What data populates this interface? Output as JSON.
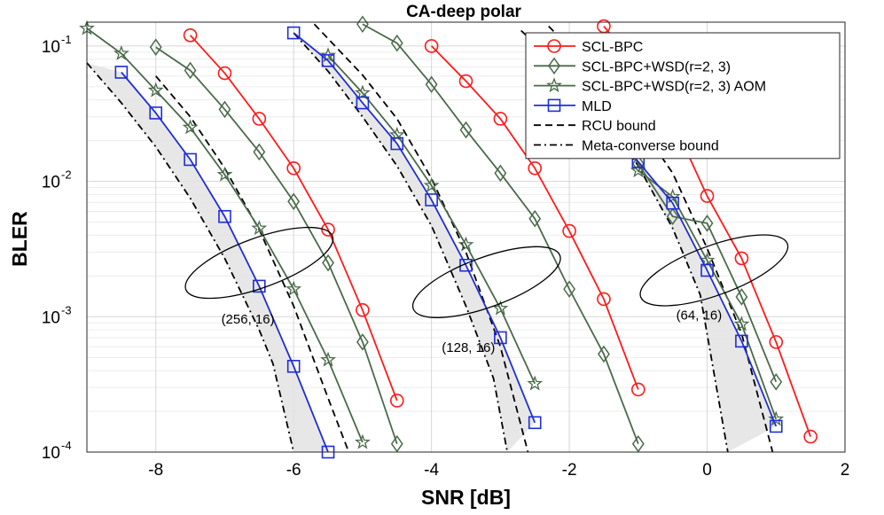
{
  "chart_data": {
    "type": "line",
    "title": "CA-deep polar",
    "xlabel": "SNR [dB]",
    "ylabel": "BLER",
    "xlim": [
      -9,
      2
    ],
    "ylim": [
      0.0001,
      0.15
    ],
    "yscale": "log",
    "grid": true,
    "legend_position": "top-right",
    "x_ticks": [
      -8,
      -6,
      -4,
      -2,
      0,
      2
    ],
    "y_ticks": [
      {
        "value": 0.1,
        "base": "10",
        "exp": "-1"
      },
      {
        "value": 0.01,
        "base": "10",
        "exp": "-2"
      },
      {
        "value": 0.001,
        "base": "10",
        "exp": "-3"
      },
      {
        "value": 0.0001,
        "base": "10",
        "exp": "-4"
      }
    ],
    "series": [
      {
        "name": "SCL-BPC",
        "color": "#ff1a1a",
        "marker": "circle",
        "dash": "solid",
        "groups": [
          {
            "x": [
              -7.5,
              -7.0,
              -6.5,
              -6.0,
              -5.5,
              -5.0,
              -4.5
            ],
            "y": [
              0.12,
              0.063,
              0.029,
              0.0125,
              0.0044,
              0.00112,
              0.00024
            ]
          },
          {
            "x": [
              -4.0,
              -3.5,
              -3.0,
              -2.5,
              -2.0,
              -1.5,
              -1.0
            ],
            "y": [
              0.1,
              0.055,
              0.029,
              0.0125,
              0.0043,
              0.00135,
              0.00029
            ]
          },
          {
            "x": [
              -1.5,
              -1.0,
              -0.5,
              0.0,
              0.5,
              1.0,
              1.5
            ],
            "y": [
              0.14,
              0.07,
              0.028,
              0.0078,
              0.0027,
              0.00065,
              0.00013
            ]
          }
        ]
      },
      {
        "name": "SCL-BPC+WSD(r=2, 3)",
        "color": "#4a6a4a",
        "marker": "diamond",
        "dash": "solid",
        "groups": [
          {
            "x": [
              -8.0,
              -7.5,
              -7.0,
              -6.5,
              -6.0,
              -5.5,
              -5.0,
              -4.5
            ],
            "y": [
              0.098,
              0.066,
              0.034,
              0.0165,
              0.0071,
              0.0025,
              0.00065,
              0.000115
            ]
          },
          {
            "x": [
              -5.0,
              -4.5,
              -4.0,
              -3.5,
              -3.0,
              -2.5,
              -2.0,
              -1.5,
              -1.0
            ],
            "y": [
              0.145,
              0.105,
              0.052,
              0.024,
              0.0115,
              0.0053,
              0.0016,
              0.00053,
              0.000115
            ]
          },
          {
            "x": [
              -1.5,
              -1.0,
              -0.5,
              0.0,
              0.5,
              1.0
            ],
            "y": [
              0.033,
              0.0135,
              0.0055,
              0.0049,
              0.0014,
              0.00033
            ]
          }
        ]
      },
      {
        "name": "SCL-BPC+WSD(r=2, 3) AOM",
        "color": "#4a6a4a",
        "marker": "star",
        "dash": "solid",
        "groups": [
          {
            "x": [
              -9.0,
              -8.5,
              -8.0,
              -7.5,
              -7.0,
              -6.5,
              -6.0,
              -5.5,
              -5.0
            ],
            "y": [
              0.135,
              0.088,
              0.047,
              0.025,
              0.0112,
              0.0045,
              0.0016,
              0.00048,
              0.000118
            ]
          },
          {
            "x": [
              -5.5,
              -5.0,
              -4.5,
              -4.0,
              -3.5,
              -3.0,
              -2.5
            ],
            "y": [
              0.085,
              0.045,
              0.022,
              0.0093,
              0.0034,
              0.00115,
              0.00032
            ]
          },
          {
            "x": [
              -1.0,
              -0.5,
              0.0,
              0.5,
              1.0
            ],
            "y": [
              0.012,
              0.0077,
              0.0026,
              0.00088,
              0.000175
            ]
          }
        ]
      },
      {
        "name": "MLD",
        "color": "#1f2ed8",
        "marker": "square",
        "dash": "solid",
        "groups": [
          {
            "x": [
              -8.5,
              -8.0,
              -7.5,
              -7.0,
              -6.5,
              -6.0,
              -5.5
            ],
            "y": [
              0.064,
              0.032,
              0.0145,
              0.0055,
              0.00168,
              0.00043,
              0.0001
            ]
          },
          {
            "x": [
              -6.0,
              -5.5,
              -5.0,
              -4.5,
              -4.0,
              -3.5,
              -3.0,
              -2.5
            ],
            "y": [
              0.125,
              0.078,
              0.038,
              0.019,
              0.0073,
              0.0024,
              0.0007,
              0.000165
            ]
          },
          {
            "x": [
              -2.5,
              -2.0,
              -1.5,
              -1.0,
              -0.5,
              0.0,
              0.5,
              1.0
            ],
            "y": [
              0.11,
              0.052,
              0.028,
              0.014,
              0.0069,
              0.0022,
              0.00066,
              0.000155
            ]
          }
        ]
      },
      {
        "name": "RCU bound",
        "color": "#000000",
        "marker": "none",
        "dash": "dashed",
        "groups": [
          {
            "x": [
              -8.0,
              -7.5,
              -7.0,
              -6.5,
              -6.0,
              -5.5,
              -5.2
            ],
            "y": [
              0.06,
              0.03,
              0.0125,
              0.0044,
              0.0012,
              0.00025,
              0.0001
            ]
          },
          {
            "x": [
              -5.7,
              -5.0,
              -4.5,
              -4.0,
              -3.5,
              -3.0,
              -2.6
            ],
            "y": [
              0.145,
              0.061,
              0.029,
              0.0105,
              0.003,
              0.0006,
              0.0001
            ]
          },
          {
            "x": [
              -2.3,
              -2.0,
              -1.5,
              -1.0,
              -0.5,
              0.0,
              0.5,
              0.95
            ],
            "y": [
              0.14,
              0.098,
              0.055,
              0.027,
              0.0115,
              0.0032,
              0.00075,
              0.0001
            ]
          }
        ]
      },
      {
        "name": "Meta-converse bound",
        "color": "#000000",
        "marker": "none",
        "dash": "dashdot",
        "groups": [
          {
            "x": [
              -9.0,
              -8.5,
              -8.0,
              -7.5,
              -7.0,
              -6.5,
              -6.3,
              -6.0
            ],
            "y": [
              0.075,
              0.038,
              0.018,
              0.0075,
              0.0027,
              0.0008,
              0.00045,
              0.0001
            ]
          },
          {
            "x": [
              -6.0,
              -5.5,
              -5.0,
              -4.5,
              -4.0,
              -3.5,
              -3.1,
              -2.9
            ],
            "y": [
              0.125,
              0.065,
              0.03,
              0.013,
              0.0047,
              0.0012,
              0.00035,
              0.0001
            ]
          },
          {
            "x": [
              -2.7,
              -2.0,
              -1.5,
              -1.0,
              -0.5,
              -0.1,
              0.3
            ],
            "y": [
              0.13,
              0.06,
              0.03,
              0.013,
              0.0045,
              0.00145,
              0.0001
            ]
          }
        ]
      }
    ],
    "annotations": [
      {
        "text": "(256, 16)",
        "x": -7.05,
        "y": 0.00089
      },
      {
        "text": "(128, 16)",
        "x": -3.85,
        "y": 0.00055
      },
      {
        "text": "(64, 16)",
        "x": -0.45,
        "y": 0.00095
      }
    ],
    "ellipses": [
      {
        "cx": -6.5,
        "cy": 0.0025
      },
      {
        "cx": -3.2,
        "cy": 0.0018
      },
      {
        "cx": 0.1,
        "cy": 0.0022
      }
    ]
  }
}
